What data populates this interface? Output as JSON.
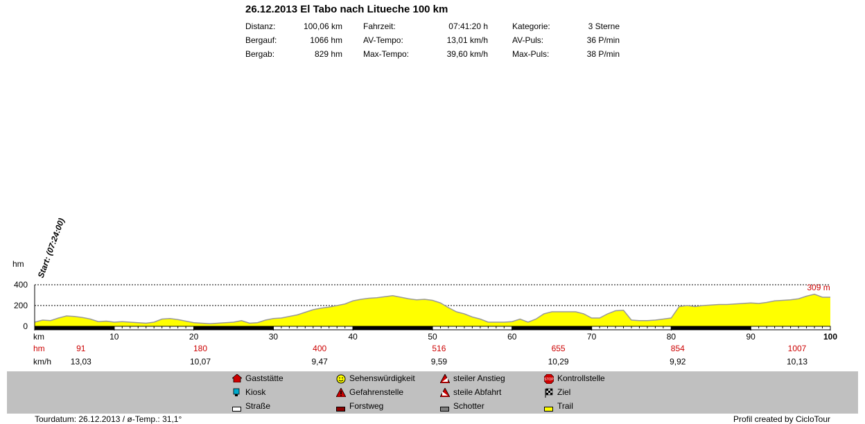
{
  "header": {
    "title": "26.12.2013 El Tabo nach Litueche 100 km",
    "stats": [
      [
        {
          "label": "Distanz:",
          "value": "100,06 km"
        },
        {
          "label": "Fahrzeit:",
          "value": "07:41:20 h"
        },
        {
          "label": "Kategorie:",
          "value": "3 Sterne"
        }
      ],
      [
        {
          "label": "Bergauf:",
          "value": "1066 hm"
        },
        {
          "label": "AV-Tempo:",
          "value": "13,01 km/h"
        },
        {
          "label": "AV-Puls:",
          "value": "36 P/min"
        }
      ],
      [
        {
          "label": "Bergab:",
          "value": "829 hm"
        },
        {
          "label": "Max-Tempo:",
          "value": "39,60 km/h"
        },
        {
          "label": "Max-Puls:",
          "value": "38 P/min"
        }
      ]
    ]
  },
  "chart_data": {
    "type": "area",
    "ylabel": "hm",
    "xlabel": "km",
    "xlim": [
      0,
      100
    ],
    "ylim": [
      0,
      400
    ],
    "yticks": [
      "400",
      "200",
      "0"
    ],
    "xticks": [
      "10",
      "20",
      "30",
      "40",
      "50",
      "60",
      "70",
      "80",
      "90",
      "100"
    ],
    "gridlines_y": [
      400,
      200
    ],
    "start_annotation": "Start: (07:24:00)",
    "max_annotation": "309 m",
    "fill_color": "#ffff00",
    "line_color": "#999999",
    "x": [
      0,
      1,
      2,
      3,
      4,
      5,
      6,
      7,
      8,
      9,
      10,
      11,
      12,
      13,
      14,
      15,
      16,
      17,
      18,
      19,
      20,
      21,
      22,
      23,
      24,
      25,
      26,
      27,
      28,
      29,
      30,
      31,
      32,
      33,
      34,
      35,
      36,
      37,
      38,
      39,
      40,
      41,
      42,
      43,
      44,
      45,
      46,
      47,
      48,
      49,
      50,
      51,
      52,
      53,
      54,
      55,
      56,
      57,
      58,
      59,
      60,
      61,
      62,
      63,
      64,
      65,
      66,
      67,
      68,
      69,
      70,
      71,
      72,
      73,
      74,
      75,
      76,
      77,
      78,
      79,
      80,
      81,
      82,
      83,
      84,
      85,
      86,
      87,
      88,
      89,
      90,
      91,
      92,
      93,
      94,
      95,
      96,
      97,
      98,
      99,
      100
    ],
    "y": [
      40,
      60,
      55,
      80,
      100,
      95,
      85,
      70,
      45,
      50,
      40,
      45,
      40,
      35,
      30,
      40,
      70,
      75,
      65,
      50,
      35,
      30,
      25,
      30,
      35,
      40,
      55,
      30,
      35,
      60,
      75,
      80,
      95,
      110,
      135,
      160,
      175,
      185,
      200,
      215,
      245,
      260,
      270,
      275,
      285,
      295,
      280,
      265,
      255,
      260,
      250,
      225,
      180,
      140,
      120,
      90,
      70,
      40,
      40,
      40,
      45,
      70,
      40,
      70,
      120,
      140,
      140,
      140,
      140,
      120,
      80,
      80,
      120,
      150,
      155,
      60,
      55,
      55,
      60,
      70,
      80,
      190,
      200,
      190,
      200,
      205,
      210,
      210,
      215,
      220,
      225,
      220,
      230,
      245,
      250,
      255,
      265,
      290,
      309,
      280,
      280
    ]
  },
  "distance_row": {
    "label": "km",
    "ticks": [
      "10",
      "20",
      "30",
      "40",
      "50",
      "60",
      "70",
      "80",
      "90",
      "100"
    ]
  },
  "climb_row": {
    "label": "hm",
    "values": [
      "91",
      "180",
      "400",
      "516",
      "655",
      "854",
      "1007"
    ]
  },
  "speed_row": {
    "label": "km/h",
    "values": [
      "13,03",
      "10,07",
      "9,47",
      "9,59",
      "10,29",
      "9,92",
      "10,13"
    ]
  },
  "legend": [
    {
      "label": "Gaststätte",
      "icon": "house-icon",
      "color": "#cc0000"
    },
    {
      "label": "Kiosk",
      "icon": "cup-icon",
      "color": "#00aacc"
    },
    {
      "label": "Straße",
      "icon": "surface-road-icon",
      "color": "#ffffff"
    },
    {
      "label": "Sehenswürdigkeit",
      "icon": "smiley-icon",
      "color": "#ffff00"
    },
    {
      "label": "Gefahrenstelle",
      "icon": "danger-icon",
      "color": "#cc0000"
    },
    {
      "label": "Forstweg",
      "icon": "surface-forest-icon",
      "color": "#8b0000"
    },
    {
      "label": "steiler Anstieg",
      "icon": "steep-climb-icon",
      "color": "#cc0000"
    },
    {
      "label": "steile Abfahrt",
      "icon": "steep-descent-icon",
      "color": "#cc0000"
    },
    {
      "label": "Schotter",
      "icon": "surface-gravel-icon",
      "color": "#808080"
    },
    {
      "label": "Kontrollstelle",
      "icon": "stop-icon",
      "color": "#cc0000"
    },
    {
      "label": "Ziel",
      "icon": "finish-flag-icon",
      "color": "#000000"
    },
    {
      "label": "Trail",
      "icon": "surface-trail-icon",
      "color": "#ffff00"
    }
  ],
  "footer": {
    "left": "Tourdatum: 26.12.2013  /  ø-Temp.: 31,1°",
    "right": "Profil created by CicloTour"
  }
}
